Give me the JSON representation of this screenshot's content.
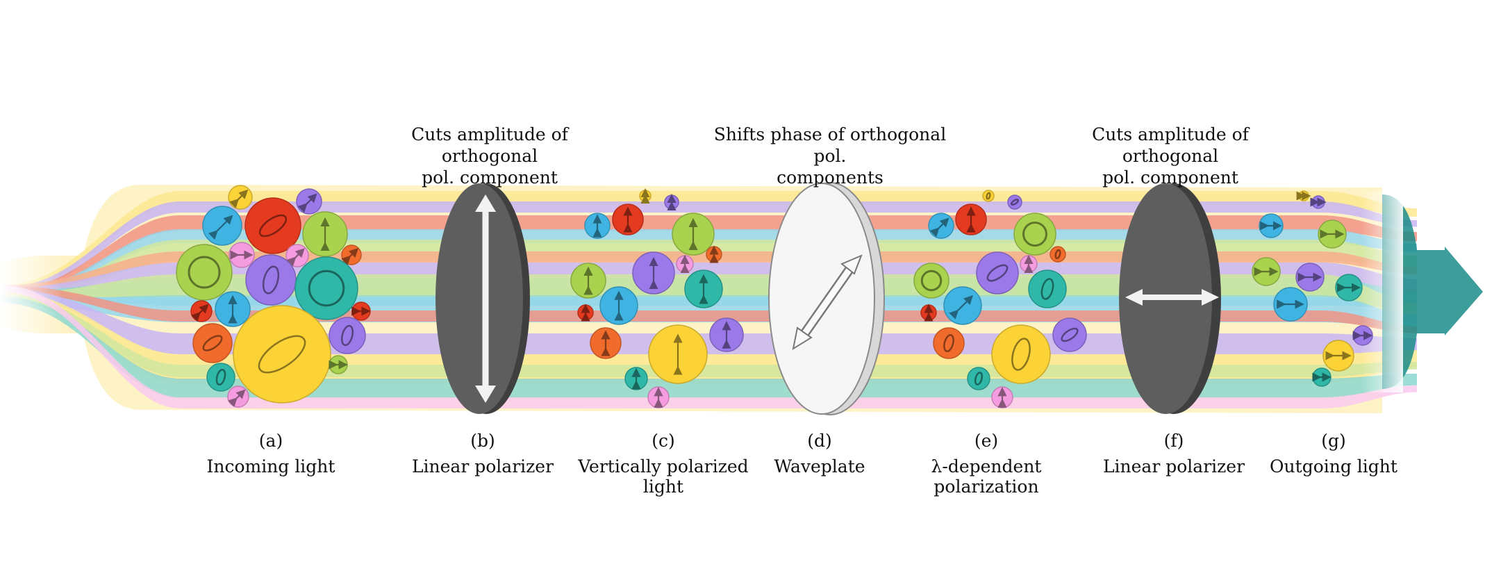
{
  "top_notes": {
    "polarizer_b": [
      "Cuts amplitude of orthogonal",
      "pol. component"
    ],
    "waveplate": [
      "Shifts phase of orthogonal pol.",
      "components"
    ],
    "polarizer_f": [
      "Cuts amplitude of orthogonal",
      "pol. component"
    ]
  },
  "stages": [
    {
      "letter": "(a)",
      "label": "Incoming light"
    },
    {
      "letter": "(b)",
      "label": "Linear polarizer"
    },
    {
      "letter": "(c)",
      "label": "Vertically polarized light"
    },
    {
      "letter": "(d)",
      "label": "Waveplate"
    },
    {
      "letter": "(e)",
      "label": "λ-dependent polarization"
    },
    {
      "letter": "(f)",
      "label": "Linear polarizer"
    },
    {
      "letter": "(g)",
      "label": "Outgoing light"
    }
  ],
  "colors": {
    "yellow": "#fcd337",
    "blue": "#3fb4e2",
    "lime": "#a9d24f",
    "red": "#e33a20",
    "purple": "#9b79e8",
    "teal": "#2fb7a8",
    "orange": "#f16c2c",
    "pink": "#f59ce0",
    "arrow_teal": "#117a78",
    "optic_dark": "#5a5a5a",
    "optic_light": "#f4f4f4"
  },
  "polarization_icons": {
    "incoming": [
      "linear-icon",
      "circular-icon",
      "elliptical-icon"
    ],
    "after_polarizer": "vertical-arrow-icon",
    "after_waveplate": [
      "circular-icon",
      "elliptical-icon",
      "diagonal-arrow-icon"
    ],
    "outgoing": "horizontal-arrow-icon"
  }
}
